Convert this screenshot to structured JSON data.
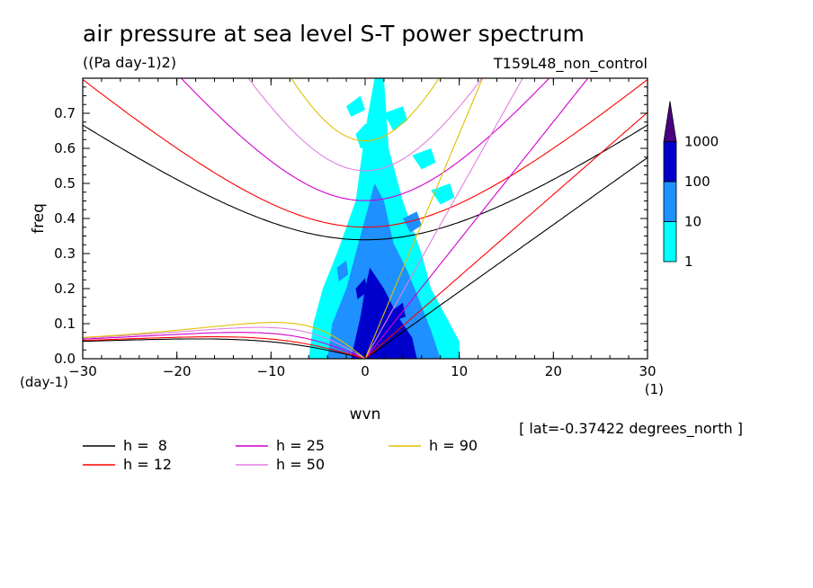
{
  "header": {
    "title": "air pressure at sea level S-T power spectrum",
    "units": "((Pa day-1)2)",
    "run_name": "T159L48_non_control"
  },
  "footer": {
    "lat_note": "[ lat=-0.37422 degrees_north ]"
  },
  "chart_data": {
    "type": "heatmap",
    "title": "air pressure at sea level S-T power spectrum",
    "xlabel": "wvn",
    "ylabel": "freq",
    "x_unit_label": "(1)",
    "y_unit_label": "(day-1)",
    "xlim": [
      -30,
      30
    ],
    "ylim": [
      0,
      0.8
    ],
    "x_ticks": [
      -30,
      -20,
      -10,
      0,
      10,
      20,
      30
    ],
    "x_tick_labels": [
      "−30",
      "−20",
      "−10",
      "0",
      "10",
      "20",
      "30"
    ],
    "y_ticks": [
      0.0,
      0.1,
      0.2,
      0.3,
      0.4,
      0.5,
      0.6,
      0.7
    ],
    "y_tick_labels": [
      "0.0",
      "0.1",
      "0.2",
      "0.3",
      "0.4",
      "0.5",
      "0.6",
      "0.7"
    ],
    "grid": false,
    "colorbar": {
      "levels": [
        "1",
        "10",
        "100",
        "1000"
      ],
      "colors": [
        "#00ffff",
        "#1e90ff",
        "#0000cd",
        "#4b0082"
      ],
      "extend": "max"
    },
    "contour_regions": [
      {
        "level": 1,
        "color": "#00ffff",
        "polygons": [
          [
            [
              -6,
              0
            ],
            [
              -5.5,
              0.1
            ],
            [
              -4.5,
              0.2
            ],
            [
              -3,
              0.3
            ],
            [
              -1,
              0.45
            ],
            [
              0,
              0.65
            ],
            [
              1,
              0.8
            ],
            [
              2,
              0.8
            ],
            [
              2.5,
              0.6
            ],
            [
              4,
              0.45
            ],
            [
              6,
              0.3
            ],
            [
              7,
              0.2
            ],
            [
              9,
              0.1
            ],
            [
              10,
              0.05
            ],
            [
              10,
              0
            ],
            [
              0,
              0
            ]
          ],
          [
            [
              -1,
              0.64
            ],
            [
              0,
              0.67
            ],
            [
              1,
              0.66
            ],
            [
              0.5,
              0.6
            ],
            [
              -0.5,
              0.6
            ]
          ],
          [
            [
              2,
              0.7
            ],
            [
              4,
              0.72
            ],
            [
              4.5,
              0.68
            ],
            [
              3,
              0.65
            ]
          ],
          [
            [
              5,
              0.58
            ],
            [
              7,
              0.6
            ],
            [
              7.5,
              0.56
            ],
            [
              6,
              0.54
            ]
          ],
          [
            [
              7,
              0.48
            ],
            [
              9,
              0.5
            ],
            [
              9.5,
              0.46
            ],
            [
              8,
              0.44
            ]
          ],
          [
            [
              -2,
              0.72
            ],
            [
              -0.5,
              0.75
            ],
            [
              0,
              0.71
            ],
            [
              -1.5,
              0.69
            ]
          ]
        ]
      },
      {
        "level": 10,
        "color": "#1e90ff",
        "polygons": [
          [
            [
              -4,
              0
            ],
            [
              -3.5,
              0.1
            ],
            [
              -2,
              0.2
            ],
            [
              -1,
              0.3
            ],
            [
              0,
              0.4
            ],
            [
              1,
              0.5
            ],
            [
              2,
              0.45
            ],
            [
              3,
              0.33
            ],
            [
              4.5,
              0.25
            ],
            [
              6,
              0.15
            ],
            [
              7,
              0.08
            ],
            [
              8,
              0
            ],
            [
              0,
              0
            ]
          ],
          [
            [
              4,
              0.4
            ],
            [
              5.5,
              0.42
            ],
            [
              6,
              0.38
            ],
            [
              4.8,
              0.36
            ]
          ],
          [
            [
              -3,
              0.26
            ],
            [
              -2,
              0.28
            ],
            [
              -1.8,
              0.24
            ],
            [
              -2.8,
              0.22
            ]
          ]
        ]
      },
      {
        "level": 100,
        "color": "#0000cd",
        "polygons": [
          [
            [
              -1.5,
              0
            ],
            [
              -1,
              0.06
            ],
            [
              -0.5,
              0.12
            ],
            [
              0,
              0.2
            ],
            [
              0.5,
              0.26
            ],
            [
              2,
              0.2
            ],
            [
              3.5,
              0.12
            ],
            [
              5,
              0.06
            ],
            [
              5.5,
              0
            ],
            [
              0,
              0
            ]
          ],
          [
            [
              -1,
              0.2
            ],
            [
              0,
              0.23
            ],
            [
              0.2,
              0.19
            ],
            [
              -0.8,
              0.17
            ]
          ],
          [
            [
              3,
              0.14
            ],
            [
              4,
              0.16
            ],
            [
              4.3,
              0.12
            ],
            [
              3.3,
              0.11
            ]
          ]
        ]
      },
      {
        "level": 1000,
        "color": "#4b0082",
        "polygons": []
      }
    ],
    "series": [
      {
        "name": "h =  8",
        "color": "#000000",
        "values": []
      },
      {
        "name": "h = 12",
        "color": "#ff0000",
        "values": []
      },
      {
        "name": "h = 25",
        "color": "#d000d0",
        "values": []
      },
      {
        "name": "h = 50",
        "color": "#e080e0",
        "values": []
      },
      {
        "name": "h = 90",
        "color": "#e0c000",
        "values": []
      }
    ],
    "legend_placement": "bottom"
  }
}
